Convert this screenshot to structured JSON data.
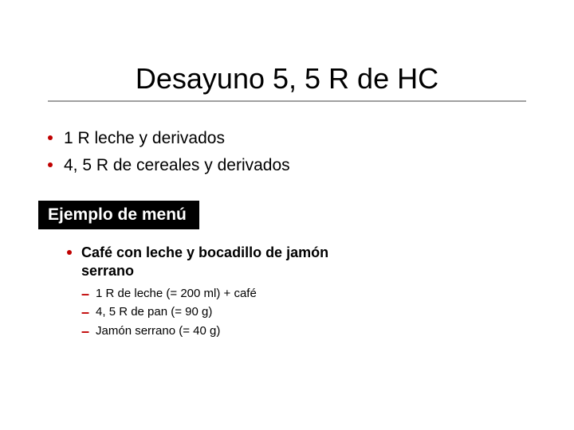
{
  "colors": {
    "title_text": "#000000",
    "title_rule": "#a0a0a0",
    "main_bullet_accent": "#c00000",
    "main_text": "#000000",
    "section_bg": "#000000",
    "section_text": "#ffffff",
    "example_accent": "#c00000",
    "example_text": "#000000",
    "dash_accent": "#c00000",
    "sub_text": "#000000",
    "background": "#ffffff"
  },
  "typography": {
    "title_fontsize": 36,
    "main_bullet_fontsize": 21,
    "section_label_fontsize": 21,
    "example_title_fontsize": 18,
    "subitem_fontsize": 15
  },
  "title": "Desayuno 5, 5 R de HC",
  "main_bullets": [
    "1 R leche y derivados",
    "4, 5 R de cereales y derivados"
  ],
  "section_label": "Ejemplo de menú",
  "example": {
    "title": "Café con leche y bocadillo de jamón serrano",
    "subitems": [
      "1 R de leche (= 200 ml) + café",
      "4, 5 R de pan (= 90 g)",
      "Jamón serrano (= 40 g)"
    ]
  }
}
